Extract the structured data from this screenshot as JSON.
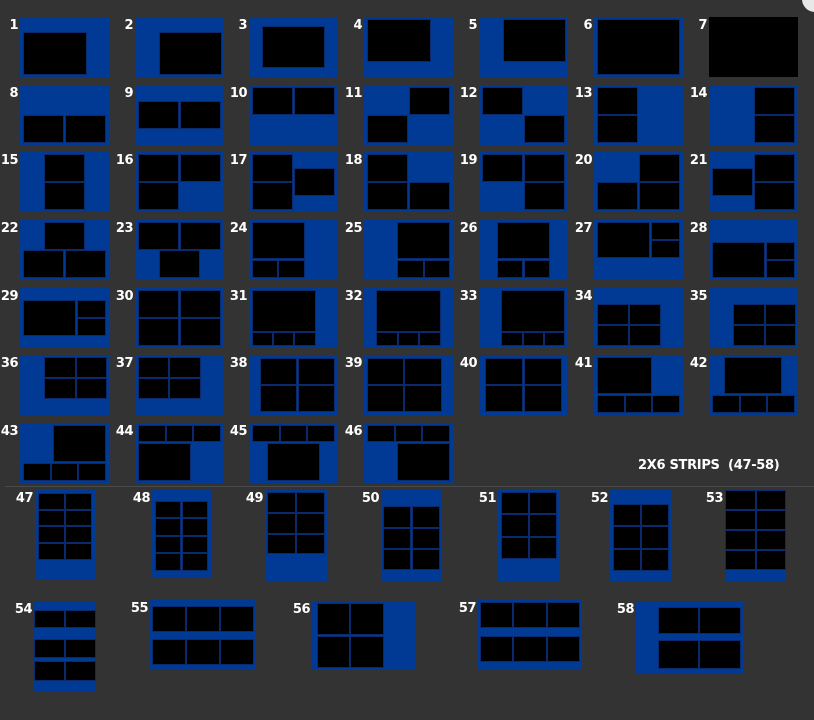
{
  "colors": {
    "background": "#333333",
    "frame": "#003a94",
    "photo_slot": "#000000"
  },
  "strips_heading": "2X6 STRIPS  (47-58)",
  "templates": [
    {
      "label": "1"
    },
    {
      "label": "2"
    },
    {
      "label": "3"
    },
    {
      "label": "4"
    },
    {
      "label": "5"
    },
    {
      "label": "6"
    },
    {
      "label": "7"
    },
    {
      "label": "8"
    },
    {
      "label": "9"
    },
    {
      "label": "10"
    },
    {
      "label": "11"
    },
    {
      "label": "12"
    },
    {
      "label": "13"
    },
    {
      "label": "14"
    },
    {
      "label": "15"
    },
    {
      "label": "16"
    },
    {
      "label": "17"
    },
    {
      "label": "18"
    },
    {
      "label": "19"
    },
    {
      "label": "20"
    },
    {
      "label": "21"
    },
    {
      "label": "22"
    },
    {
      "label": "23"
    },
    {
      "label": "24"
    },
    {
      "label": "25"
    },
    {
      "label": "26"
    },
    {
      "label": "27"
    },
    {
      "label": "28"
    },
    {
      "label": "29"
    },
    {
      "label": "30"
    },
    {
      "label": "31"
    },
    {
      "label": "32"
    },
    {
      "label": "33"
    },
    {
      "label": "34"
    },
    {
      "label": "35"
    },
    {
      "label": "36"
    },
    {
      "label": "37"
    },
    {
      "label": "38"
    },
    {
      "label": "39"
    },
    {
      "label": "40"
    },
    {
      "label": "41"
    },
    {
      "label": "42"
    },
    {
      "label": "43"
    },
    {
      "label": "44"
    },
    {
      "label": "45"
    },
    {
      "label": "46"
    },
    {
      "label": "47"
    },
    {
      "label": "48"
    },
    {
      "label": "49"
    },
    {
      "label": "50"
    },
    {
      "label": "51"
    },
    {
      "label": "52"
    },
    {
      "label": "53"
    },
    {
      "label": "54"
    },
    {
      "label": "55"
    },
    {
      "label": "56"
    },
    {
      "label": "57"
    },
    {
      "label": "58"
    }
  ]
}
